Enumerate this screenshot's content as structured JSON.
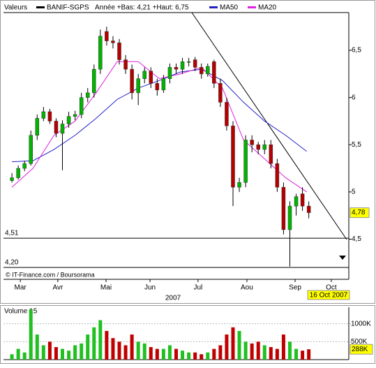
{
  "chart_data": [
    {
      "type": "candlestick",
      "legend_header": "Valeurs",
      "series_name": "BANIF-SGPS",
      "range_note": "Année +Bas: 4,21 +Haut: 6,75",
      "up_color": "#00b400",
      "down_color": "#b40000",
      "x": [
        0,
        3,
        6,
        9,
        12,
        15,
        18,
        21,
        24,
        27,
        30,
        33,
        36,
        39,
        42,
        45,
        48,
        51,
        54,
        57,
        60,
        63,
        66,
        69,
        72,
        75,
        78,
        81,
        84,
        87,
        90,
        93,
        96,
        99,
        102,
        105,
        108,
        111,
        114,
        117,
        120,
        123,
        126,
        129,
        132,
        135,
        138,
        141
      ],
      "open": [
        5.12,
        5.15,
        5.25,
        5.3,
        5.6,
        5.78,
        5.85,
        5.75,
        5.62,
        5.72,
        5.8,
        5.82,
        6.0,
        6.05,
        6.3,
        6.7,
        6.6,
        6.58,
        6.4,
        6.3,
        6.05,
        6.2,
        6.28,
        6.15,
        6.08,
        6.2,
        6.32,
        6.3,
        6.38,
        6.4,
        6.32,
        6.25,
        6.38,
        6.15,
        5.95,
        5.7,
        5.05,
        5.1,
        5.55,
        5.5,
        5.45,
        5.5,
        5.3,
        5.05,
        4.6,
        4.85,
        4.98,
        4.85
      ],
      "high": [
        5.2,
        5.28,
        5.33,
        5.65,
        5.82,
        5.9,
        5.88,
        5.78,
        5.76,
        5.85,
        5.86,
        6.05,
        6.1,
        6.35,
        6.72,
        6.75,
        6.65,
        6.62,
        6.45,
        6.35,
        6.25,
        6.32,
        6.32,
        6.2,
        6.24,
        6.36,
        6.36,
        6.42,
        6.42,
        6.43,
        6.36,
        6.36,
        6.4,
        6.2,
        6.0,
        5.75,
        5.15,
        5.6,
        5.6,
        5.53,
        5.55,
        5.55,
        5.35,
        5.1,
        4.9,
        4.98,
        5.05,
        4.9
      ],
      "low": [
        5.1,
        5.13,
        5.22,
        5.28,
        5.55,
        5.75,
        5.72,
        5.58,
        5.23,
        5.68,
        5.76,
        5.78,
        5.95,
        6.0,
        6.25,
        6.55,
        6.52,
        6.35,
        6.25,
        5.98,
        5.92,
        6.15,
        6.1,
        6.02,
        6.05,
        6.15,
        6.25,
        6.25,
        6.33,
        6.28,
        6.2,
        6.22,
        6.1,
        5.9,
        5.65,
        4.85,
        5.0,
        5.05,
        5.42,
        5.4,
        5.4,
        5.25,
        5.0,
        4.55,
        4.21,
        4.75,
        4.8,
        4.72
      ],
      "close": [
        5.15,
        5.25,
        5.3,
        5.6,
        5.78,
        5.85,
        5.75,
        5.62,
        5.72,
        5.8,
        5.82,
        6.0,
        6.05,
        6.3,
        6.65,
        6.6,
        6.58,
        6.4,
        6.3,
        6.05,
        6.2,
        6.28,
        6.15,
        6.08,
        6.2,
        6.32,
        6.3,
        6.38,
        6.38,
        6.32,
        6.25,
        6.33,
        6.15,
        5.95,
        5.7,
        5.05,
        5.1,
        5.55,
        5.5,
        5.45,
        5.5,
        5.3,
        5.05,
        4.6,
        4.85,
        4.95,
        4.85,
        4.78
      ],
      "moving_averages": [
        {
          "name": "MA50",
          "color": "#2020c8",
          "x": [
            0,
            10,
            20,
            30,
            40,
            50,
            60,
            70,
            80,
            90,
            100,
            110,
            120,
            130,
            140
          ],
          "values": [
            5.32,
            5.33,
            5.45,
            5.6,
            5.78,
            5.98,
            6.1,
            6.18,
            6.27,
            6.3,
            6.18,
            5.95,
            5.75,
            5.6,
            5.43
          ]
        },
        {
          "name": "MA20",
          "color": "#e020e0",
          "x": [
            0,
            10,
            20,
            30,
            40,
            50,
            60,
            70,
            80,
            90,
            100,
            110,
            120,
            130,
            140
          ],
          "values": [
            5.05,
            5.25,
            5.6,
            5.75,
            6.05,
            6.38,
            6.38,
            6.2,
            6.25,
            6.32,
            6.1,
            5.55,
            5.35,
            5.15,
            5.0
          ]
        }
      ],
      "xlim": [
        -4,
        160
      ],
      "xticks": [
        {
          "value": 4,
          "label": "Mar"
        },
        {
          "value": 21.8,
          "label": "Avr"
        },
        {
          "value": 44.7,
          "label": "Mai"
        },
        {
          "value": 65.6,
          "label": "Jun"
        },
        {
          "value": 88.4,
          "label": "Jul"
        },
        {
          "value": 111.6,
          "label": "Aou"
        },
        {
          "value": 134.5,
          "label": "Sep"
        },
        {
          "value": 151.7,
          "label": "Oct"
        }
      ],
      "x_axis_label": "2007",
      "ylim": [
        4.2,
        6.9
      ],
      "yticks": [
        {
          "value": 4.5,
          "label": "4,5"
        },
        {
          "value": 5,
          "label": "5"
        },
        {
          "value": 5.5,
          "label": "5,5"
        },
        {
          "value": 6,
          "label": "6"
        },
        {
          "value": 6.5,
          "label": "6,5"
        }
      ],
      "levels": [
        {
          "value": 4.51,
          "label": "4,51"
        },
        {
          "value": 4.2,
          "label": "4,20"
        }
      ],
      "last": {
        "value": 4.78,
        "label": "4,78"
      },
      "date": "16 Oct 2007",
      "source": "© IT-Finance.com / Boursorama"
    },
    {
      "type": "bar",
      "title": "Volume 15",
      "x": [
        0,
        3,
        6,
        9,
        12,
        15,
        18,
        21,
        24,
        27,
        30,
        33,
        36,
        39,
        42,
        45,
        48,
        51,
        54,
        57,
        60,
        63,
        66,
        69,
        72,
        75,
        78,
        81,
        84,
        87,
        90,
        93,
        96,
        99,
        102,
        105,
        108,
        111,
        114,
        117,
        120,
        123,
        126,
        129,
        132,
        135,
        138,
        141
      ],
      "values": [
        150000,
        300000,
        200000,
        1400000,
        700000,
        400000,
        500000,
        350000,
        300000,
        250000,
        400000,
        450000,
        700000,
        900000,
        1100000,
        800000,
        600000,
        500000,
        400000,
        700000,
        500000,
        450000,
        350000,
        300000,
        300000,
        400000,
        300000,
        250000,
        200000,
        200000,
        150000,
        200000,
        300000,
        400000,
        700000,
        900000,
        800000,
        500000,
        450000,
        500000,
        400000,
        350000,
        300000,
        700000,
        500000,
        300000,
        250000,
        288000
      ],
      "xlim": [
        -4,
        160
      ],
      "ylim": [
        0,
        1460000
      ],
      "yticks": [
        {
          "value": 500000,
          "label": "500K"
        },
        {
          "value": 1000000,
          "label": "1000K"
        }
      ],
      "last": {
        "value": 288000,
        "label": "288K"
      }
    }
  ]
}
